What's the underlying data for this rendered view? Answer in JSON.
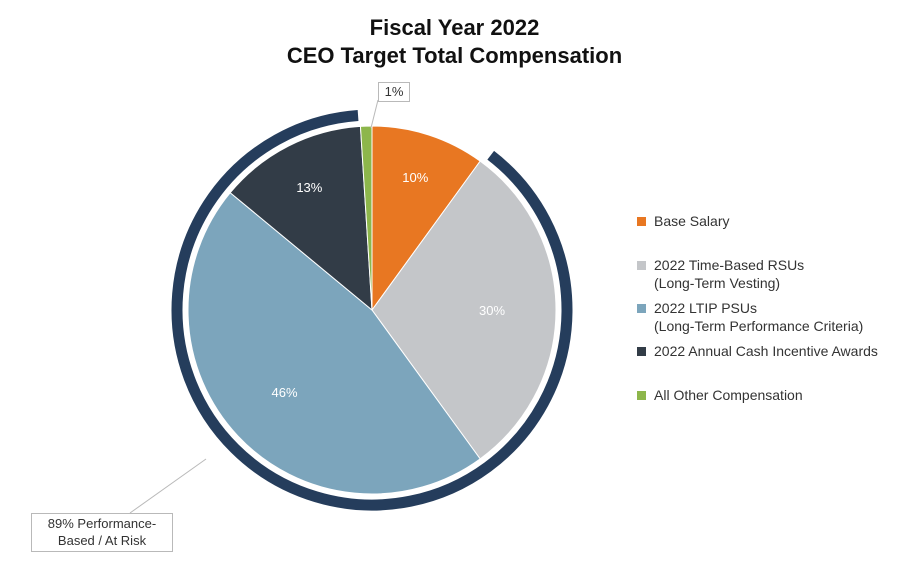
{
  "title": {
    "line1": "Fiscal Year 2022",
    "line2": "CEO Target Total Compensation"
  },
  "chart_data": {
    "type": "pie",
    "title": "Fiscal Year 2022 CEO Target Total Compensation",
    "categories": [
      "Base Salary",
      "2022 Time-Based RSUs (Long-Term Vesting)",
      "2022 LTIP PSUs (Long-Term Performance Criteria)",
      "2022 Annual Cash Incentive Awards",
      "All Other Compensation"
    ],
    "values": [
      10,
      30,
      46,
      13,
      1
    ],
    "colors": [
      "#e87722",
      "#c4c6c9",
      "#7ca5bc",
      "#323c47",
      "#8db64b"
    ],
    "data_labels": [
      "10%",
      "30%",
      "46%",
      "13%",
      "1%"
    ],
    "legend_position": "right",
    "annotations": {
      "performance_based": "89% Performance-Based / At Risk",
      "ring_color": "#253d5c"
    }
  },
  "legend": [
    {
      "line1": "Base Salary",
      "line2": "",
      "color": "#e87722"
    },
    {
      "line1": "2022 Time-Based RSUs",
      "line2": "(Long-Term Vesting)",
      "color": "#c4c6c9"
    },
    {
      "line1": "2022 LTIP PSUs",
      "line2": "(Long-Term Performance Criteria)",
      "color": "#7ca5bc"
    },
    {
      "line1": "2022 Annual Cash Incentive Awards",
      "line2": "",
      "color": "#323c47"
    },
    {
      "line1": "All Other Compensation",
      "line2": "",
      "color": "#8db64b"
    }
  ],
  "callouts": {
    "small_slice": "1%",
    "performance_line1": "89% Performance-",
    "performance_line2": "Based / At Risk"
  }
}
